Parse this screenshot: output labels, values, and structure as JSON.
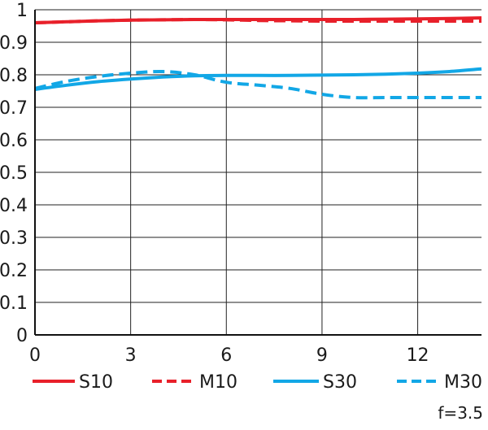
{
  "chart_data": {
    "type": "line",
    "title": "",
    "xlabel": "",
    "ylabel": "",
    "xlim": [
      0,
      14
    ],
    "ylim": [
      0,
      1
    ],
    "grid": true,
    "legend_placement": "bottom",
    "xticks": [
      "0",
      "3",
      "6",
      "9",
      "12"
    ],
    "xtick_values": [
      0,
      3,
      6,
      9,
      12
    ],
    "yticks": [
      "0",
      "0.1",
      "0.2",
      "0.3",
      "0.4",
      "0.5",
      "0.6",
      "0.7",
      "0.8",
      "0.9",
      "1"
    ],
    "ytick_values": [
      0,
      0.1,
      0.2,
      0.3,
      0.4,
      0.5,
      0.6,
      0.7,
      0.8,
      0.9,
      1.0
    ],
    "series": [
      {
        "name": "S10",
        "color": "#e8202a",
        "dash": "solid",
        "x": [
          0,
          1,
          2,
          3,
          4,
          5,
          6,
          7,
          8,
          9,
          10,
          11,
          12,
          13,
          14
        ],
        "y": [
          0.96,
          0.963,
          0.966,
          0.968,
          0.969,
          0.97,
          0.97,
          0.97,
          0.97,
          0.97,
          0.97,
          0.971,
          0.972,
          0.973,
          0.975
        ]
      },
      {
        "name": "M10",
        "color": "#e8202a",
        "dash": "dashed",
        "x": [
          0,
          1,
          2,
          3,
          4,
          5,
          6,
          7,
          8,
          9,
          10,
          11,
          12,
          13,
          14
        ],
        "y": [
          0.96,
          0.963,
          0.966,
          0.968,
          0.969,
          0.97,
          0.969,
          0.967,
          0.966,
          0.965,
          0.965,
          0.965,
          0.965,
          0.965,
          0.965
        ]
      },
      {
        "name": "S30",
        "color": "#12a7e6",
        "dash": "solid",
        "x": [
          0,
          1,
          2,
          3,
          4,
          5,
          6,
          7,
          8,
          9,
          10,
          11,
          12,
          13,
          14
        ],
        "y": [
          0.755,
          0.768,
          0.779,
          0.787,
          0.793,
          0.797,
          0.798,
          0.798,
          0.798,
          0.799,
          0.8,
          0.802,
          0.805,
          0.81,
          0.818
        ]
      },
      {
        "name": "M30",
        "color": "#12a7e6",
        "dash": "dashed",
        "x": [
          0,
          1,
          2,
          3,
          4,
          5,
          6,
          7,
          8,
          9,
          10,
          11,
          12,
          13,
          14
        ],
        "y": [
          0.758,
          0.78,
          0.795,
          0.805,
          0.81,
          0.8,
          0.777,
          0.768,
          0.758,
          0.74,
          0.73,
          0.73,
          0.73,
          0.73,
          0.73
        ]
      }
    ],
    "annotation": "f=3.5"
  }
}
